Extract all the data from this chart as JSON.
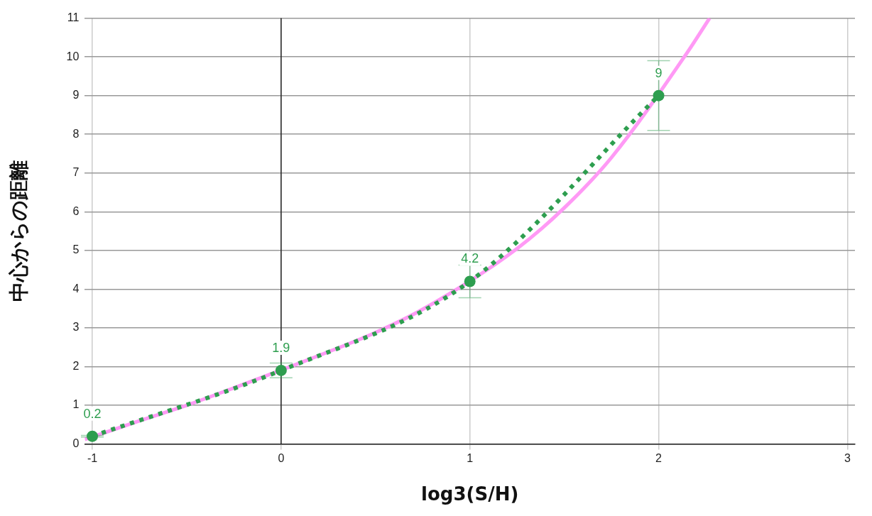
{
  "chart_data": {
    "type": "line",
    "xlabel": "log3(S/H)",
    "ylabel": "中心からの距離",
    "xlim": [
      -1.04,
      3.04
    ],
    "xticks": [
      -1,
      0,
      1,
      2,
      3
    ],
    "ylim": [
      0,
      11
    ],
    "yticks": [
      0,
      1,
      2,
      3,
      4,
      5,
      6,
      7,
      8,
      9,
      10,
      11
    ],
    "grid": true,
    "legend": false,
    "ref_lines": [
      {
        "axis": "x",
        "value": 0,
        "color": "#222222"
      }
    ],
    "series": [
      {
        "type": "line",
        "color": "#ff99f5",
        "line_style": "solid",
        "marker": "none",
        "x": [
          -1.04,
          -0.75,
          -0.5,
          -0.25,
          0.25,
          0.5,
          0.75,
          1.25,
          1.5,
          1.75,
          2.15,
          2.27
        ],
        "values": [
          0.12,
          0.6,
          1.0,
          1.45,
          2.38,
          2.88,
          3.48,
          5.05,
          6.1,
          7.4,
          10.1,
          11
        ]
      },
      {
        "type": "line",
        "color": "#2e9e4f",
        "line_style": "dotted",
        "marker": "circle",
        "x": [
          -1,
          0,
          1,
          2
        ],
        "values": [
          0.2,
          1.9,
          4.2,
          9
        ],
        "errors": [
          0.02,
          0.19,
          0.42,
          0.9
        ],
        "value_labels": [
          "0.2",
          "1.9",
          "4.2",
          "9"
        ]
      }
    ]
  }
}
